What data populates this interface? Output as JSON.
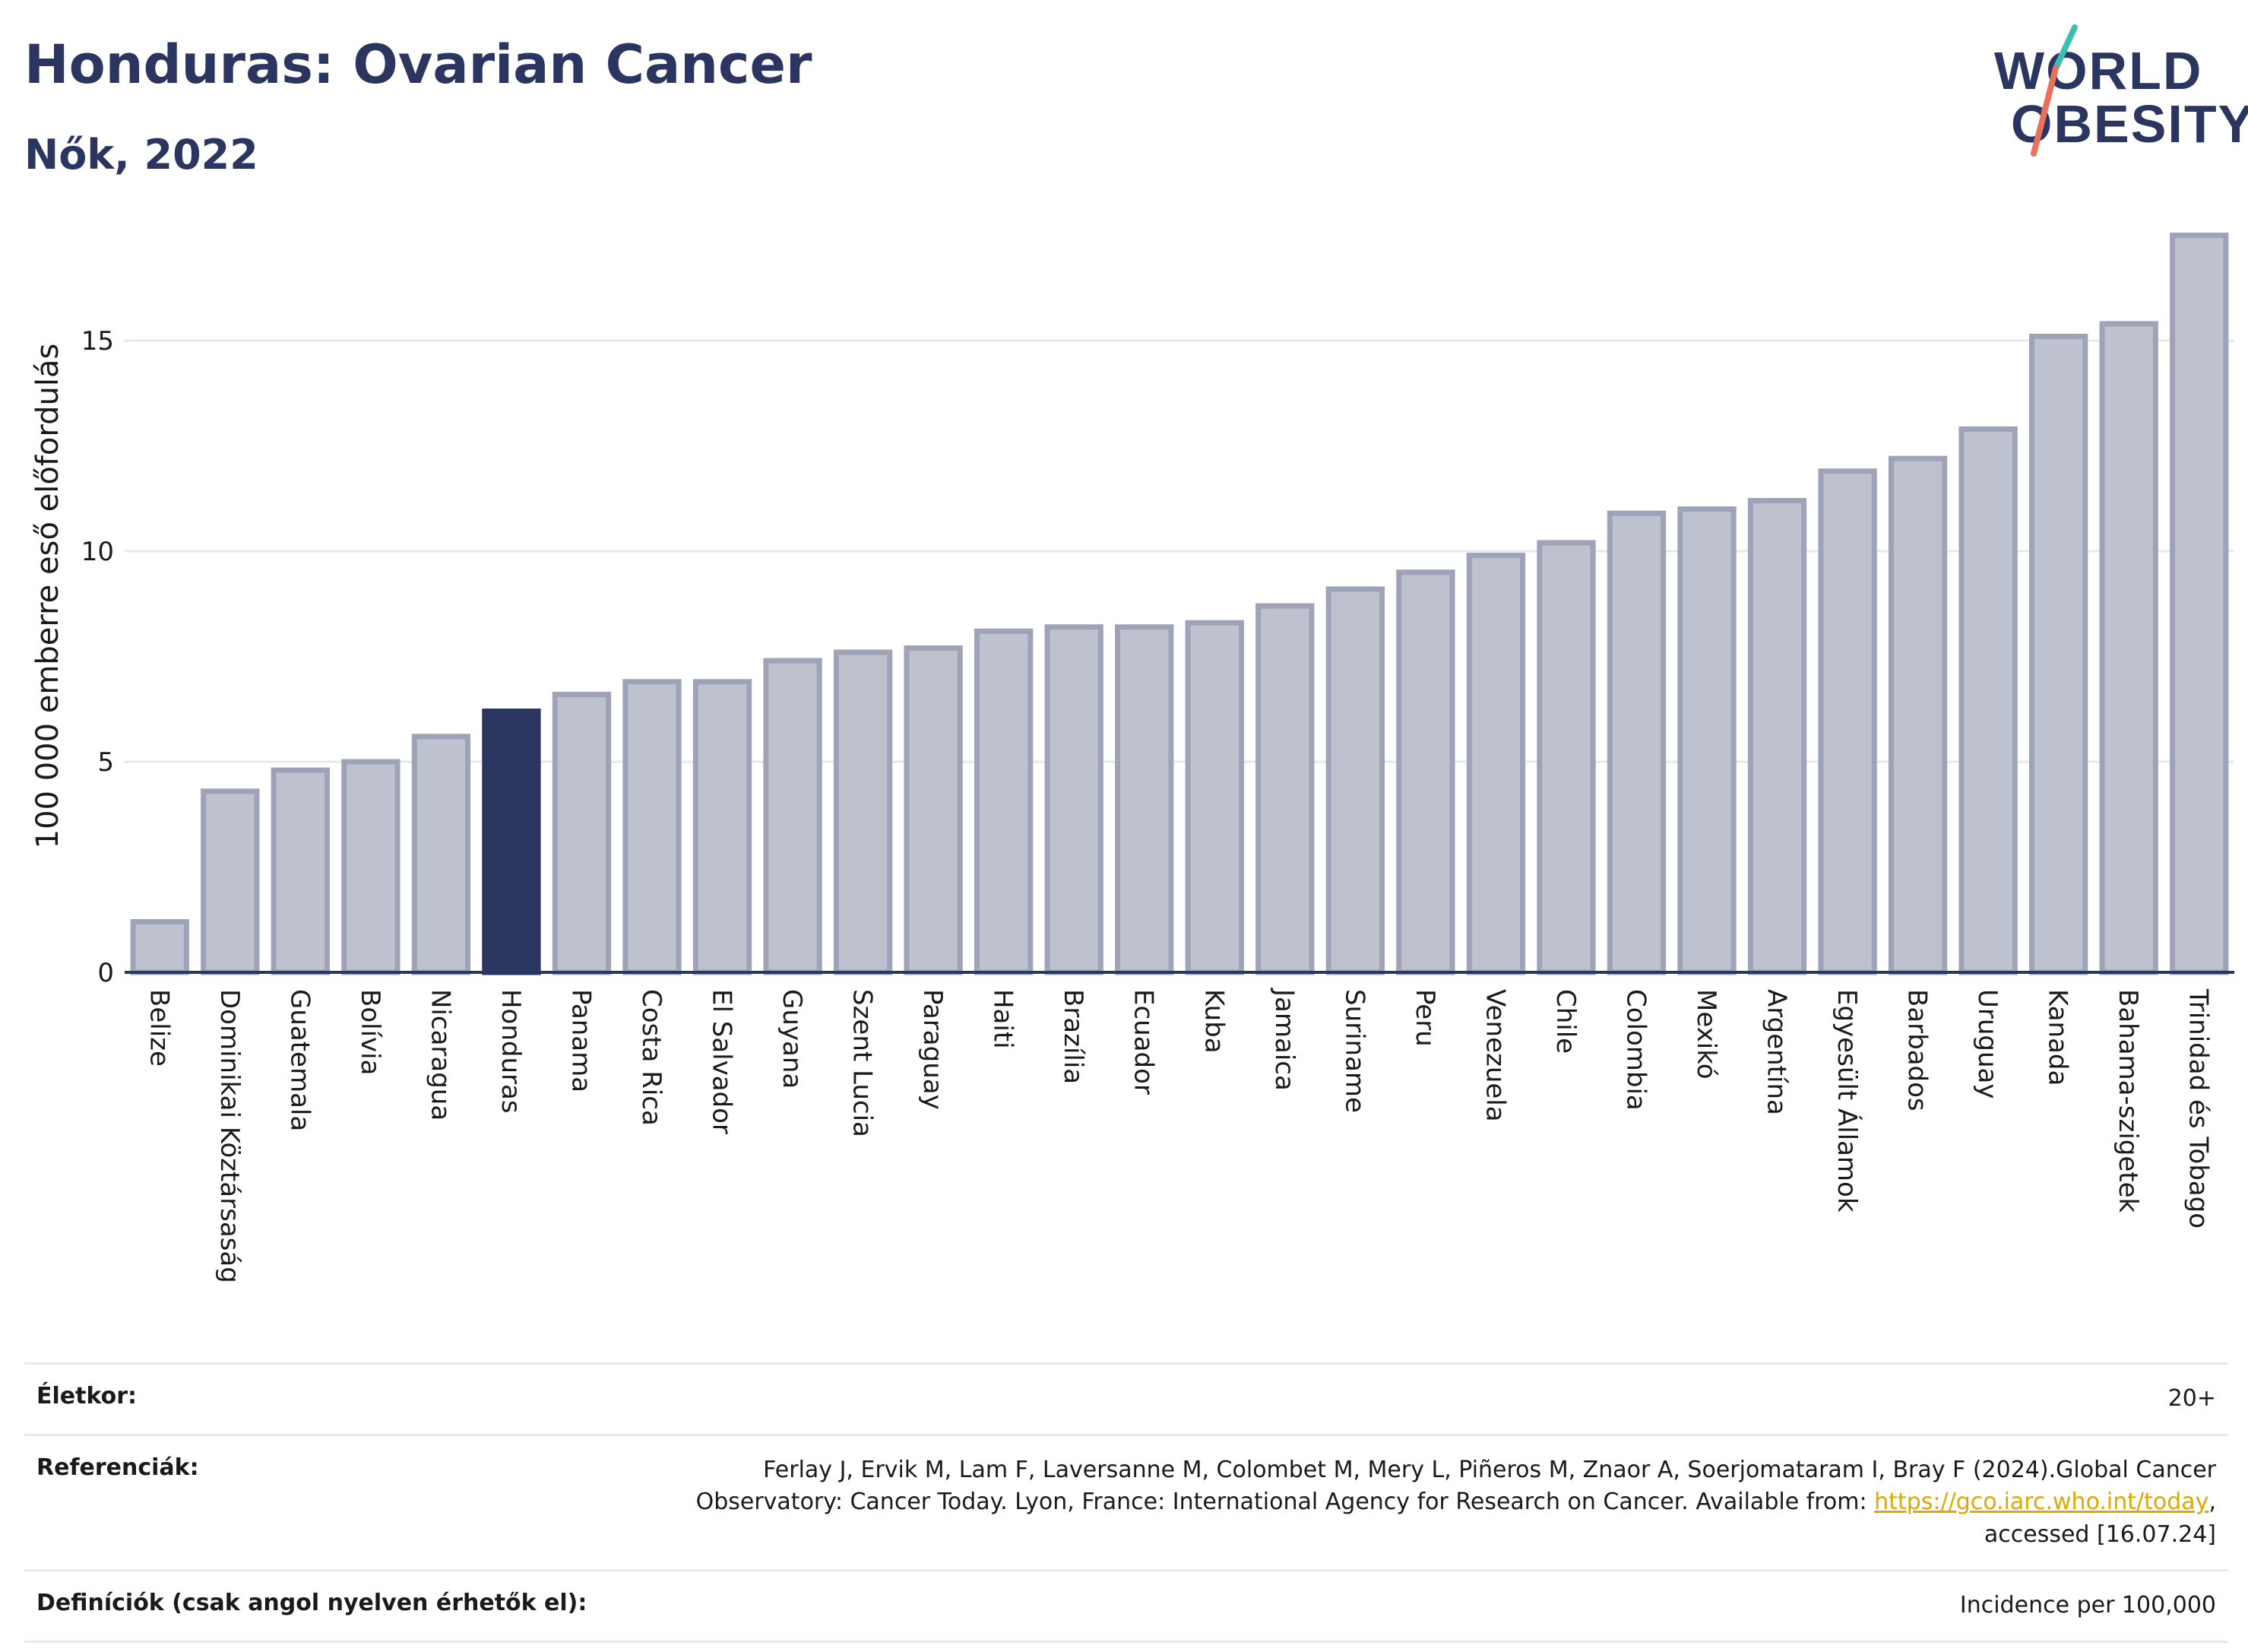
{
  "header": {
    "title": "Honduras: Ovarian Cancer",
    "subtitle": "Nők, 2022"
  },
  "logo": {
    "line1": "WORLD",
    "line2": "OBESITY",
    "accent_color_1": "#3bbfb3",
    "accent_color_2": "#e8705c"
  },
  "colors": {
    "bar_default": "#bec1ce",
    "bar_border": "#9ea3b8",
    "bar_highlight": "#2a3560",
    "title": "#2a3560"
  },
  "chart_data": {
    "type": "bar",
    "title": "Honduras: Ovarian Cancer",
    "subtitle": "Nők, 2022",
    "xlabel": "",
    "ylabel": "100 000 emberre eső előfordulás",
    "ylim": [
      0,
      17.6
    ],
    "yticks": [
      0,
      5,
      10,
      15
    ],
    "grid": true,
    "highlight": "Honduras",
    "categories": [
      "Belize",
      "Dominikai Köztársaság",
      "Guatemala",
      "Bolívia",
      "Nicaragua",
      "Honduras",
      "Panama",
      "Costa Rica",
      "El Salvador",
      "Guyana",
      "Szent Lucia",
      "Paraguay",
      "Haiti",
      "Brazília",
      "Ecuador",
      "Kuba",
      "Jamaica",
      "Suriname",
      "Peru",
      "Venezuela",
      "Chile",
      "Colombia",
      "Mexikó",
      "Argentína",
      "Egyesült Államok",
      "Barbados",
      "Uruguay",
      "Kanada",
      "Bahama-szigetek",
      "Trinidad és Tobago"
    ],
    "values": [
      1.2,
      4.3,
      4.8,
      5.0,
      5.6,
      6.2,
      6.6,
      6.9,
      6.9,
      7.4,
      7.6,
      7.7,
      8.1,
      8.2,
      8.2,
      8.3,
      8.7,
      9.1,
      9.5,
      9.9,
      10.2,
      10.9,
      11.0,
      11.2,
      11.9,
      12.2,
      12.9,
      15.1,
      15.4,
      17.5
    ]
  },
  "info": {
    "age_label": "Életkor:",
    "age_value": "20+",
    "ref_label": "Referenciák:",
    "ref_line1": "Ferlay J, Ervik M, Lam F, Laversanne M, Colombet M, Mery L, Piñeros M, Znaor A, Soerjomataram I, Bray F (2024).Global Cancer",
    "ref_line2_pre": "Observatory: Cancer Today. Lyon, France: International Agency for Research on Cancer. Available from: ",
    "ref_link": "https://gco.iarc.who.int/today",
    "ref_line2_post": ",",
    "ref_line3": "accessed [16.07.24]",
    "def_label": "Definíciók (csak angol nyelven érhetők el):",
    "def_value": "Incidence per 100,000"
  }
}
